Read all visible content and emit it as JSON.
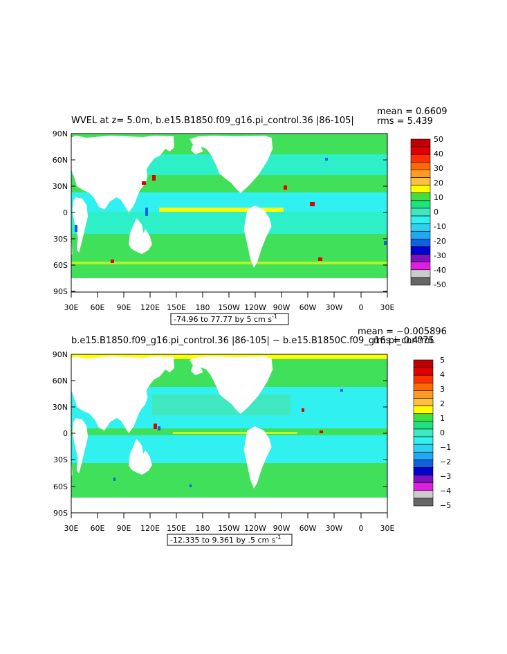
{
  "chart_data": [
    {
      "type": "heatmap",
      "title": "WVEL at z=     5.0m, b.e15.B1850.f09_g16.pi_control.36  |86-105|",
      "stats": [
        "mean = 0.6609",
        "rms = 5.439"
      ],
      "x_tick_labels": [
        "30E",
        "60E",
        "90E",
        "120E",
        "150E",
        "180",
        "150W",
        "120W",
        "90W",
        "60W",
        "30W",
        "0",
        "30E"
      ],
      "y_tick_labels": [
        "90N",
        "60N",
        "30N",
        "0",
        "30S",
        "60S",
        "90S"
      ],
      "range_label": "-74.96 to 77.77 by 5 cm s",
      "range_unit_exp": "-1",
      "colorbar_labels": [
        "50",
        "40",
        "30",
        "20",
        "10",
        "0",
        "-10",
        "-20",
        "-30",
        "-40",
        "-50"
      ],
      "colorbar_colors": [
        "#c00000",
        "#e00000",
        "#ff3000",
        "#ff6a00",
        "#ff9a20",
        "#ffc040",
        "#ffff00",
        "#40e040",
        "#20e080",
        "#40e8c0",
        "#30f0f0",
        "#30d0f0",
        "#20a8f0",
        "#1060e0",
        "#0000d0",
        "#8010c0",
        "#e020e0",
        "#cccccc",
        "#666666"
      ],
      "grid": false
    },
    {
      "type": "heatmap",
      "title": "b.e15.B1850.f09_g16.pi_control.36  |86-105|  −  b.e15.B1850C.f09_g16.pi_control.",
      "stats": [
        "mean = −0.005896",
        "rms = 0.4?75"
      ],
      "x_tick_labels": [
        "30E",
        "60E",
        "90E",
        "120E",
        "150E",
        "180",
        "150W",
        "120W",
        "90W",
        "60W",
        "30W",
        "0",
        "30E"
      ],
      "y_tick_labels": [
        "90N",
        "60N",
        "30N",
        "0",
        "30S",
        "60S",
        "90S"
      ],
      "range_label": "-12.335 to 9.361 by .5 cm s",
      "range_unit_exp": "-1",
      "colorbar_labels": [
        "5",
        "4",
        "3",
        "2",
        "1",
        "0",
        "−1",
        "−2",
        "−3",
        "−4",
        "−5"
      ],
      "colorbar_colors": [
        "#c00000",
        "#e00000",
        "#ff3000",
        "#ff6a00",
        "#ff9a20",
        "#ffc040",
        "#ffff00",
        "#40e040",
        "#20e080",
        "#40e8c0",
        "#30f0f0",
        "#30d0f0",
        "#20a8f0",
        "#1060e0",
        "#0000d0",
        "#8010c0",
        "#e020e0",
        "#cccccc",
        "#666666"
      ],
      "grid": false
    }
  ]
}
